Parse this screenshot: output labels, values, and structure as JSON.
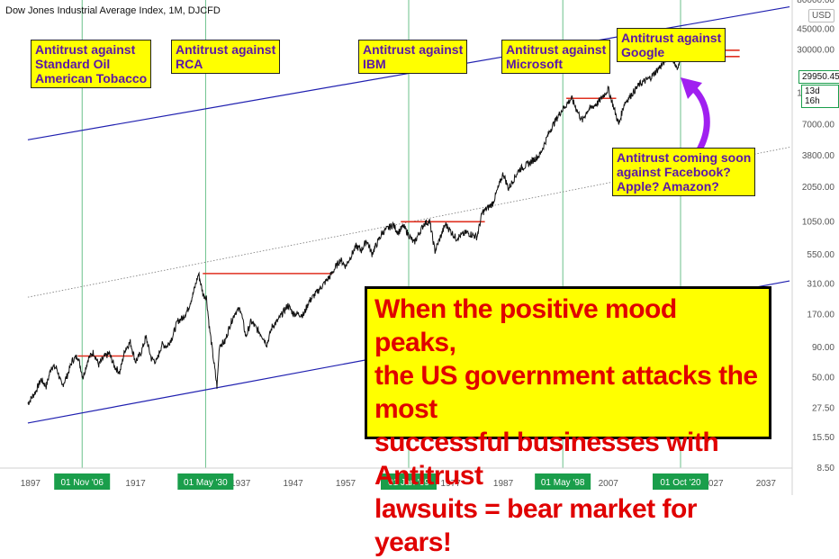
{
  "chart_title": "Dow Jones Industrial Average Index, 1M, DJCFD",
  "currency": "USD",
  "last_price": "29950.45",
  "countdown": "13d 16h",
  "big_note": "When the positive mood peaks,\nthe US government attacks the most\nsuccessful businesses with Antitrust\nlawsuits = bear market for years!",
  "soon_note": "Antitrust coming soon\nagainst Facebook?\nApple? Amazon?",
  "colors": {
    "marker": "#1a9e4b",
    "channel": "#2020b0",
    "resistance": "#e03020",
    "price": "#111111",
    "arrow": "#a020f0"
  },
  "chart_data": {
    "type": "line",
    "title": "Dow Jones Industrial Average Index, 1M, DJCFD",
    "y_scale": "log",
    "ylim": [
      8.5,
      80000
    ],
    "xlim": [
      1896,
      2042
    ],
    "y_ticks": [
      "80000.00",
      "45000.00",
      "30000.00",
      "13000.00",
      "7000.00",
      "3800.00",
      "2050.00",
      "1050.00",
      "550.00",
      "310.00",
      "170.00",
      "90.00",
      "50.00",
      "27.50",
      "15.50",
      "8.50"
    ],
    "x_ticks": [
      "1897",
      "1917",
      "1937",
      "1947",
      "1957",
      "1977",
      "1987",
      "2007",
      "2027",
      "2037"
    ],
    "event_markers": [
      {
        "label": "01 Nov '06",
        "year": 1906.83,
        "annotation": "Antitrust against\nStandard Oil\nAmerican Tobacco"
      },
      {
        "label": "01 May '30",
        "year": 1930.33,
        "annotation": "Antitrust against\nRCA"
      },
      {
        "label": "01 Jan '69",
        "year": 1969.0,
        "annotation": "Antitrust against\nIBM"
      },
      {
        "label": "01 May '98",
        "year": 1998.33,
        "annotation": "Antitrust against\nMicrosoft"
      },
      {
        "label": "01 Oct '20",
        "year": 2020.75,
        "annotation": "Antitrust against\nGoogle"
      }
    ],
    "series": [
      {
        "values": [
          [
            1896.5,
            30
          ],
          [
            1898,
            38
          ],
          [
            1899,
            48
          ],
          [
            1900,
            42
          ],
          [
            1901,
            62
          ],
          [
            1902,
            60
          ],
          [
            1903,
            42
          ],
          [
            1904,
            52
          ],
          [
            1905,
            70
          ],
          [
            1906,
            76
          ],
          [
            1907,
            50
          ],
          [
            1908,
            72
          ],
          [
            1909,
            82
          ],
          [
            1910,
            64
          ],
          [
            1911,
            74
          ],
          [
            1912,
            80
          ],
          [
            1913,
            62
          ],
          [
            1914,
            55
          ],
          [
            1915,
            86
          ],
          [
            1916,
            100
          ],
          [
            1917,
            68
          ],
          [
            1918,
            80
          ],
          [
            1919,
            110
          ],
          [
            1920,
            72
          ],
          [
            1921,
            68
          ],
          [
            1922,
            95
          ],
          [
            1923,
            92
          ],
          [
            1924,
            110
          ],
          [
            1925,
            150
          ],
          [
            1926,
            160
          ],
          [
            1927,
            190
          ],
          [
            1928,
            260
          ],
          [
            1929,
            380
          ],
          [
            1929.9,
            250
          ],
          [
            1930.5,
            240
          ],
          [
            1931,
            140
          ],
          [
            1932.5,
            42
          ],
          [
            1933,
            95
          ],
          [
            1934,
            100
          ],
          [
            1935,
            140
          ],
          [
            1936,
            180
          ],
          [
            1937,
            190
          ],
          [
            1938,
            110
          ],
          [
            1939,
            150
          ],
          [
            1940,
            130
          ],
          [
            1941,
            115
          ],
          [
            1942,
            95
          ],
          [
            1943,
            135
          ],
          [
            1944,
            150
          ],
          [
            1946,
            205
          ],
          [
            1947,
            175
          ],
          [
            1949,
            170
          ],
          [
            1950,
            220
          ],
          [
            1952,
            280
          ],
          [
            1954,
            360
          ],
          [
            1956,
            500
          ],
          [
            1957,
            440
          ],
          [
            1959,
            650
          ],
          [
            1960,
            600
          ],
          [
            1961,
            730
          ],
          [
            1962,
            560
          ],
          [
            1964,
            850
          ],
          [
            1966,
            990
          ],
          [
            1967,
            850
          ],
          [
            1968,
            960
          ],
          [
            1970,
            690
          ],
          [
            1972,
            1020
          ],
          [
            1973,
            1050
          ],
          [
            1974,
            590
          ],
          [
            1976,
            1000
          ],
          [
            1978,
            760
          ],
          [
            1980,
            850
          ],
          [
            1982,
            780
          ],
          [
            1983,
            1250
          ],
          [
            1985,
            1500
          ],
          [
            1987,
            2700
          ],
          [
            1988,
            2000
          ],
          [
            1990,
            2900
          ],
          [
            1992,
            3300
          ],
          [
            1994,
            3900
          ],
          [
            1996,
            6400
          ],
          [
            1998,
            9100
          ],
          [
            2000,
            11700
          ],
          [
            2002,
            7500
          ],
          [
            2003,
            9200
          ],
          [
            2005,
            10700
          ],
          [
            2007,
            14000
          ],
          [
            2009,
            7000
          ],
          [
            2010,
            10500
          ],
          [
            2013,
            15500
          ],
          [
            2015,
            17500
          ],
          [
            2017,
            22000
          ],
          [
            2018,
            25000
          ],
          [
            2019,
            27000
          ],
          [
            2020.2,
            20000
          ],
          [
            2020.8,
            29950
          ]
        ]
      }
    ],
    "resistance_levels": [
      {
        "from": 1906.0,
        "to": 1916.5,
        "value": 76
      },
      {
        "from": 1929.8,
        "to": 1954.5,
        "value": 381
      },
      {
        "from": 1967.5,
        "to": 1983.5,
        "value": 1050
      },
      {
        "from": 1999.0,
        "to": 2008.5,
        "value": 11700
      },
      {
        "from": 2021.0,
        "to": 2032.0,
        "value": 29950
      },
      {
        "from": 2021.0,
        "to": 2032.0,
        "value": 26500
      }
    ],
    "channel_lines": [
      {
        "style": "solid",
        "start": [
          1896.5,
          5200
        ],
        "end": [
          2041.5,
          70000
        ]
      },
      {
        "style": "solid",
        "start": [
          1896.5,
          20.5
        ],
        "end": [
          2041.5,
          330
        ]
      },
      {
        "style": "dotted",
        "start": [
          1896.5,
          240
        ],
        "end": [
          2041.5,
          4500
        ]
      }
    ]
  }
}
